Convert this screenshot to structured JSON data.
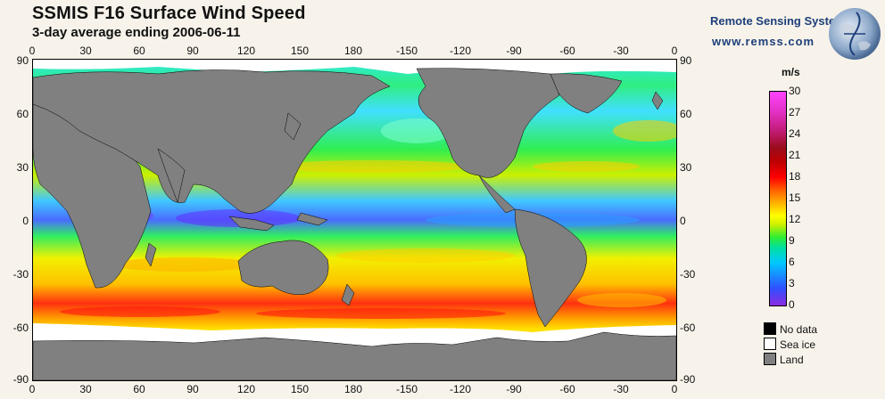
{
  "title": "SSMIS F16 Surface Wind Speed",
  "subtitle": "3-day average ending 2006-06-11",
  "branding": {
    "name": "Remote Sensing Systems",
    "url": "www.remss.com",
    "logo_icon": "globe-icon"
  },
  "axes": {
    "lon_labels": [
      "0",
      "30",
      "60",
      "90",
      "120",
      "150",
      "180",
      "-150",
      "-120",
      "-90",
      "-60",
      "-30",
      "0"
    ],
    "lat_labels": [
      "90",
      "60",
      "30",
      "0",
      "-30",
      "-60",
      "-90"
    ]
  },
  "colorbar": {
    "unit": "m/s",
    "min": 0,
    "max": 30,
    "ticks": [
      "30",
      "27",
      "24",
      "21",
      "18",
      "15",
      "12",
      "9",
      "6",
      "3",
      "0"
    ]
  },
  "legend": [
    {
      "label": "No data",
      "color": "#000000"
    },
    {
      "label": "Sea ice",
      "color": "#ffffff"
    },
    {
      "label": "Land",
      "color": "#808080"
    }
  ],
  "colors": {
    "land": "#808080",
    "ocean_calm": "#8a2be2",
    "ocean_moderate": "#30ee30",
    "ocean_strong": "#ff0000"
  }
}
